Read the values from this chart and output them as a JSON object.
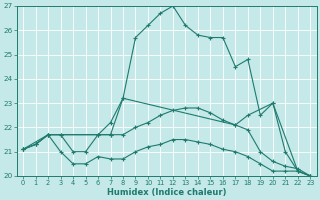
{
  "xlabel": "Humidex (Indice chaleur)",
  "xlim": [
    -0.5,
    23.5
  ],
  "ylim": [
    20,
    27
  ],
  "xticks": [
    0,
    1,
    2,
    3,
    4,
    5,
    6,
    7,
    8,
    9,
    10,
    11,
    12,
    13,
    14,
    15,
    16,
    17,
    18,
    19,
    20,
    21,
    22,
    23
  ],
  "yticks": [
    20,
    21,
    22,
    23,
    24,
    25,
    26,
    27
  ],
  "bg_color": "#c5e8e8",
  "line_color": "#1e7b6e",
  "grid_color": "#ffffff",
  "lines": [
    {
      "x": [
        0,
        1,
        2,
        3,
        6,
        7,
        8,
        9,
        10,
        11,
        12,
        13,
        14,
        15,
        16,
        17,
        18,
        19,
        20,
        21,
        22,
        23
      ],
      "y": [
        21.1,
        21.3,
        21.7,
        21.7,
        21.7,
        22.2,
        23.2,
        25.7,
        26.2,
        26.7,
        27.0,
        26.2,
        25.8,
        25.7,
        25.7,
        24.5,
        24.8,
        22.5,
        23.0,
        21.0,
        20.2,
        20.0
      ]
    },
    {
      "x": [
        0,
        1,
        2,
        3,
        4,
        5,
        6,
        7,
        8,
        9,
        10,
        11,
        12,
        13,
        14,
        15,
        16,
        17,
        18,
        19,
        20,
        21,
        22,
        23
      ],
      "y": [
        21.1,
        21.3,
        21.7,
        21.7,
        21.0,
        21.0,
        21.7,
        21.7,
        21.7,
        22.0,
        22.2,
        22.5,
        22.7,
        22.8,
        22.8,
        22.6,
        22.3,
        22.1,
        21.9,
        21.0,
        20.6,
        20.4,
        20.3,
        20.0
      ]
    },
    {
      "x": [
        0,
        1,
        2,
        3,
        4,
        5,
        6,
        7,
        8,
        9,
        10,
        11,
        12,
        13,
        14,
        15,
        16,
        17,
        18,
        19,
        20,
        21,
        22,
        23
      ],
      "y": [
        21.1,
        21.3,
        21.7,
        21.0,
        20.5,
        20.5,
        20.8,
        20.7,
        20.7,
        21.0,
        21.2,
        21.3,
        21.5,
        21.5,
        21.4,
        21.3,
        21.1,
        21.0,
        20.8,
        20.5,
        20.2,
        20.2,
        20.2,
        20.0
      ]
    },
    {
      "x": [
        0,
        2,
        7,
        8,
        17,
        18,
        20,
        22,
        23
      ],
      "y": [
        21.1,
        21.7,
        21.7,
        23.2,
        22.1,
        22.5,
        23.0,
        20.2,
        20.0
      ]
    }
  ]
}
